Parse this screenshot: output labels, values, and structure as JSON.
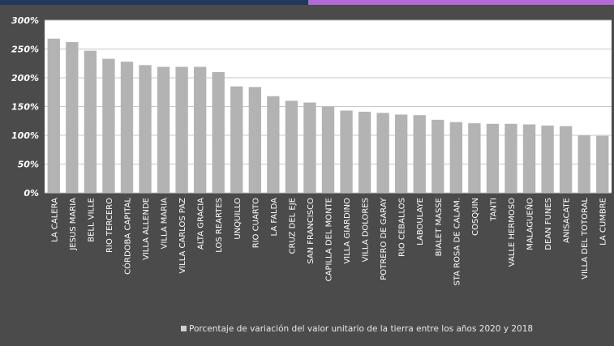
{
  "chart_data": {
    "type": "bar",
    "title": "",
    "xlabel": "",
    "ylabel": "",
    "ylim": [
      0,
      300
    ],
    "ytick_labels": [
      "0%",
      "50%",
      "100%",
      "150%",
      "200%",
      "250%",
      "300%"
    ],
    "ytick_values": [
      0,
      50,
      100,
      150,
      200,
      250,
      300
    ],
    "grid": true,
    "legend_position": "bottom",
    "categories": [
      "LA CALERA",
      "JESUS MARIA",
      "BELL VILLE",
      "RIO TERCERO",
      "CÓRDOBA CAPITAL",
      "VILLA ALLENDE",
      "VILLA MARIA",
      "VILLA CARLOS PAZ",
      "ALTA GRACIA",
      "LOS REARTES",
      "UNQUILLO",
      "RIO CUARTO",
      "LA FALDA",
      "CRUZ DEL EJE",
      "SAN FRANCISCO",
      "CAPILLA DEL MONTE",
      "VILLA GIARDINO",
      "VILLA DOLORES",
      "POTRERO DE GARAY",
      "RIO CEBALLOS",
      "LABOULAYE",
      "BIALET MASSE",
      "STA ROSA DE CALAM.",
      "COSQUIN",
      "TANTI",
      "VALLE HERMOSO",
      "MALAGUEÑO",
      "DEAN FUNES",
      "ANISACATE",
      "VILLA DEL TOTORAL",
      "LA CUMBRE"
    ],
    "series": [
      {
        "name": "Porcentaje de variación del valor unitario de la tierra entre los años 2020 y 2018",
        "color": "#b3b3b3",
        "values": [
          268,
          262,
          247,
          233,
          228,
          222,
          219,
          219,
          219,
          210,
          185,
          184,
          168,
          160,
          157,
          150,
          143,
          141,
          139,
          136,
          135,
          127,
          123,
          121,
          120,
          120,
          119,
          117,
          116,
          100,
          99
        ]
      }
    ]
  },
  "colors": {
    "background": "#4b4b4b",
    "plot_area": "#ffffff",
    "bar": "#b3b3b3",
    "top_bar_left": "#1f3a5a",
    "top_bar_right": "#b36ad6"
  }
}
